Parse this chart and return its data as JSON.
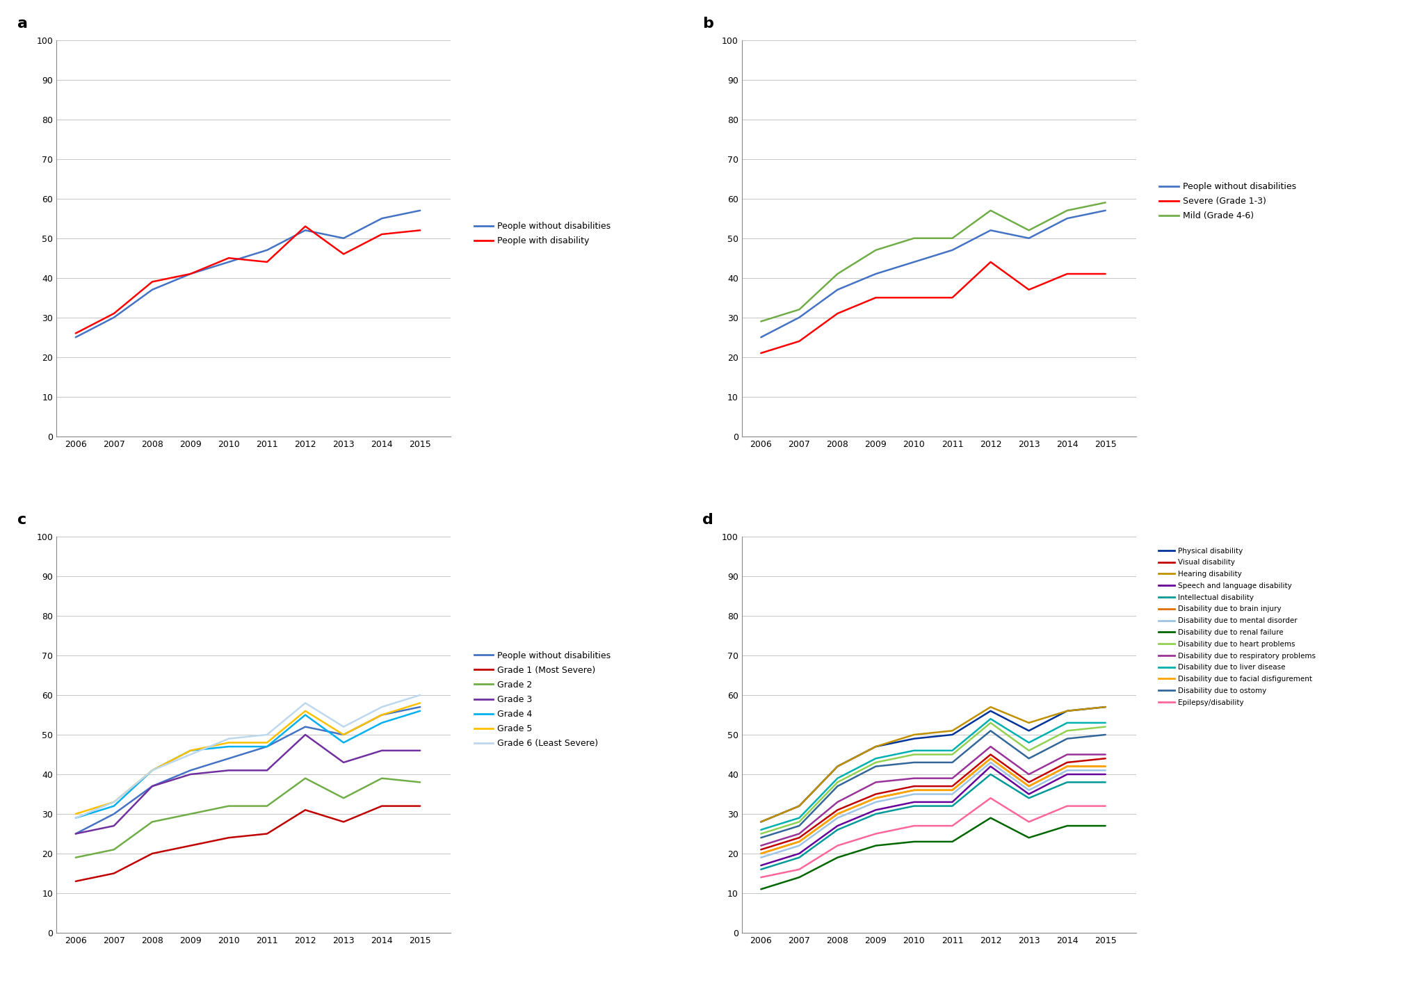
{
  "years": [
    2006,
    2007,
    2008,
    2009,
    2010,
    2011,
    2012,
    2013,
    2014,
    2015
  ],
  "panel_a": {
    "label": "a",
    "series": [
      {
        "name": "People without disabilities",
        "color": "#4472C4",
        "values": [
          25,
          30,
          37,
          41,
          44,
          47,
          52,
          50,
          55,
          57
        ]
      },
      {
        "name": "People with disability",
        "color": "#FF0000",
        "values": [
          26,
          31,
          39,
          41,
          45,
          44,
          53,
          46,
          51,
          52
        ]
      }
    ]
  },
  "panel_b": {
    "label": "b",
    "series": [
      {
        "name": "People without disabilities",
        "color": "#4472C4",
        "values": [
          25,
          30,
          37,
          41,
          44,
          47,
          52,
          50,
          55,
          57
        ]
      },
      {
        "name": "Severe (Grade 1-3)",
        "color": "#FF0000",
        "values": [
          21,
          24,
          31,
          35,
          35,
          35,
          44,
          37,
          41,
          41
        ]
      },
      {
        "name": "Mild (Grade 4-6)",
        "color": "#70AD47",
        "values": [
          29,
          32,
          41,
          47,
          50,
          50,
          57,
          52,
          57,
          59
        ]
      }
    ]
  },
  "panel_c": {
    "label": "c",
    "series": [
      {
        "name": "People without disabilities",
        "color": "#4472C4",
        "values": [
          25,
          30,
          37,
          41,
          44,
          47,
          52,
          50,
          55,
          57
        ]
      },
      {
        "name": "Grade 1 (Most Severe)",
        "color": "#C00000",
        "values": [
          13,
          15,
          20,
          22,
          24,
          25,
          31,
          28,
          32,
          32
        ]
      },
      {
        "name": "Grade 2",
        "color": "#70AD47",
        "values": [
          19,
          21,
          28,
          30,
          32,
          32,
          39,
          34,
          39,
          38
        ]
      },
      {
        "name": "Grade 3",
        "color": "#7030A0",
        "values": [
          25,
          27,
          37,
          40,
          41,
          41,
          50,
          43,
          46,
          46
        ]
      },
      {
        "name": "Grade 4",
        "color": "#00B0F0",
        "values": [
          29,
          32,
          41,
          46,
          47,
          47,
          55,
          48,
          53,
          56
        ]
      },
      {
        "name": "Grade 5",
        "color": "#FFC000",
        "values": [
          30,
          33,
          41,
          46,
          48,
          48,
          56,
          50,
          55,
          58
        ]
      },
      {
        "name": "Grade 6 (Least Severe)",
        "color": "#BDD7EE",
        "values": [
          29,
          33,
          41,
          45,
          49,
          50,
          58,
          52,
          57,
          60
        ]
      }
    ]
  },
  "panel_d": {
    "label": "d",
    "series": [
      {
        "name": "Physical disability",
        "color": "#003399",
        "values": [
          28,
          32,
          42,
          47,
          49,
          50,
          56,
          51,
          56,
          57
        ]
      },
      {
        "name": "Visual disability",
        "color": "#C00000",
        "values": [
          21,
          24,
          31,
          35,
          37,
          37,
          45,
          38,
          43,
          44
        ]
      },
      {
        "name": "Hearing disability",
        "color": "#C09000",
        "values": [
          28,
          32,
          42,
          47,
          50,
          51,
          57,
          53,
          56,
          57
        ]
      },
      {
        "name": "Speech and language disability",
        "color": "#660099",
        "values": [
          17,
          20,
          27,
          31,
          33,
          33,
          42,
          35,
          40,
          40
        ]
      },
      {
        "name": "Intellectual disability",
        "color": "#009999",
        "values": [
          16,
          19,
          26,
          30,
          32,
          32,
          40,
          34,
          38,
          38
        ]
      },
      {
        "name": "Disability due to brain injury",
        "color": "#E07000",
        "values": [
          20,
          23,
          30,
          34,
          36,
          36,
          44,
          37,
          42,
          42
        ]
      },
      {
        "name": "Disability due to mental disorder",
        "color": "#9DC3E6",
        "values": [
          19,
          22,
          29,
          33,
          35,
          35,
          43,
          36,
          41,
          41
        ]
      },
      {
        "name": "Disability due to renal failure",
        "color": "#006600",
        "values": [
          11,
          14,
          19,
          22,
          23,
          23,
          29,
          24,
          27,
          27
        ]
      },
      {
        "name": "Disability due to heart problems",
        "color": "#92D050",
        "values": [
          25,
          28,
          38,
          43,
          45,
          45,
          53,
          46,
          51,
          52
        ]
      },
      {
        "name": "Disability due to respiratory problems",
        "color": "#993399",
        "values": [
          22,
          25,
          33,
          38,
          39,
          39,
          47,
          40,
          45,
          45
        ]
      },
      {
        "name": "Disability due to liver disease",
        "color": "#00B0B0",
        "values": [
          26,
          29,
          39,
          44,
          46,
          46,
          54,
          48,
          53,
          53
        ]
      },
      {
        "name": "Disability due to facial disfigurement",
        "color": "#FFA500",
        "values": [
          20,
          23,
          30,
          34,
          36,
          36,
          44,
          37,
          42,
          42
        ]
      },
      {
        "name": "Disability due to ostomy",
        "color": "#336699",
        "values": [
          24,
          27,
          37,
          42,
          43,
          43,
          51,
          44,
          49,
          50
        ]
      },
      {
        "name": "Epilepsy/disability",
        "color": "#FF6699",
        "values": [
          14,
          16,
          22,
          25,
          27,
          27,
          34,
          28,
          32,
          32
        ]
      }
    ]
  },
  "ylim": [
    0,
    100
  ],
  "yticks": [
    0,
    10,
    20,
    30,
    40,
    50,
    60,
    70,
    80,
    90,
    100
  ],
  "background_color": "#FFFFFF",
  "grid_color": "#BBBBBB",
  "tick_fontsize": 9,
  "legend_fontsize_ab": 9,
  "legend_fontsize_c": 9,
  "legend_fontsize_d": 7.5,
  "label_fontsize": 16
}
